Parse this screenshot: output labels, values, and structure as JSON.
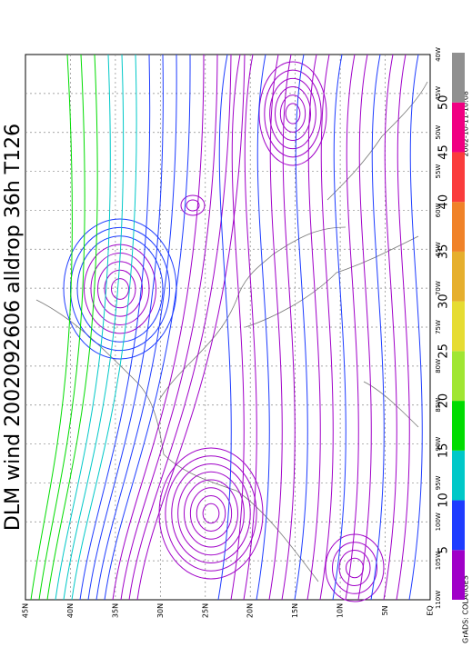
{
  "title": "DLM wind 2002092606 alldrop 36h T126",
  "lat_labels": [
    "EQ",
    "5N",
    "10N",
    "15N",
    "20N",
    "25N",
    "30N",
    "35N",
    "40N",
    "45N"
  ],
  "lon_labels": [
    "110W",
    "105W",
    "100W",
    "95W",
    "90W",
    "85W",
    "80W",
    "75W",
    "70W",
    "65W",
    "60W",
    "55W",
    "50W",
    "45W",
    "40W"
  ],
  "colorbar": {
    "labels": [
      5,
      10,
      15,
      20,
      25,
      30,
      35,
      40,
      45,
      50
    ],
    "colors": [
      "#a000c8",
      "#1e3cff",
      "#00c8c8",
      "#00dc00",
      "#a0e632",
      "#e6dc32",
      "#e6af2d",
      "#f08228",
      "#fa3c3c",
      "#f00082",
      "#909090"
    ]
  },
  "credit": "GrADS: COLA/IGES",
  "timestamp": "2002-10-11-10:08"
}
